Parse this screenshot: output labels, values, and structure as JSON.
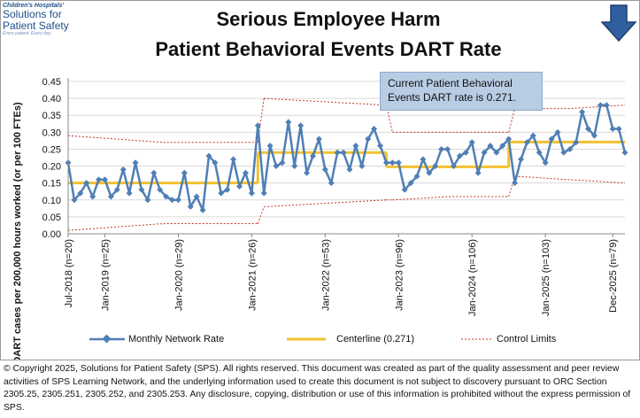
{
  "logo": {
    "line1": "Children's Hospitals'",
    "line2": "Solutions for",
    "line3": "Patient Safety",
    "line4": "Every patient. Every day."
  },
  "header": {
    "title_line1": "Serious Employee Harm",
    "title_line2": "Patient Behavioral Events DART Rate",
    "arrow_icon": "down-arrow-icon",
    "arrow_color": "#2f5f9e"
  },
  "callout": {
    "text": "Current  Patient Behavioral Events DART  rate  is 0.271."
  },
  "legend": {
    "series_label": "Monthly Network Rate",
    "centerline_label": "Centerline (0.271)",
    "limits_label": "Control Limits"
  },
  "footer": {
    "text": "© Copyright 2025, Solutions for Patient Safety (SPS).  All rights reserved.  This document was created as part of the quality assessment and peer review activities of SPS Learning Network, and the underlying information used to create this document is not subject to discovery pursuant to ORC Section 2305.25, 2305.251, 2305.252, and 2305.253. Any disclosure, copying, distribution or use of this information is prohibited without the express permission of SPS."
  },
  "colors": {
    "series": "#4f7fb5",
    "centerline": "#f2c12e",
    "limits": "#c0392b"
  },
  "chart_data": {
    "type": "line",
    "title": "Serious Employee Harm Patient Behavioral Events DART Rate",
    "ylabel": "DART cases  per 200,000 hours worked (or per 100 FTEs)",
    "xlabel": "",
    "ylim": [
      0,
      0.45
    ],
    "yticks": [
      0.0,
      0.05,
      0.1,
      0.15,
      0.2,
      0.25,
      0.3,
      0.35,
      0.4,
      0.45
    ],
    "ytick_labels": [
      "0.00",
      "0.05",
      "0.10",
      "0.15",
      "0.20",
      "0.25",
      "0.30",
      "0.35",
      "0.40",
      "0.45"
    ],
    "x_tick_labels": [
      {
        "index": 0,
        "label": "Jul-2018 (n=20)"
      },
      {
        "index": 6,
        "label": "Jan-2019 (n=25)"
      },
      {
        "index": 18,
        "label": "Jan-2020 (n=29)"
      },
      {
        "index": 30,
        "label": "Jan-2021 (n=26)"
      },
      {
        "index": 42,
        "label": "Jan-2022 (n=53)"
      },
      {
        "index": 54,
        "label": "Jan-2023 (n=96)"
      },
      {
        "index": 66,
        "label": "Jan-2024 (n=106)"
      },
      {
        "index": 78,
        "label": "Jan-2025 (n=103)"
      },
      {
        "index": 89,
        "label": "Dec-2025 (n=79)"
      }
    ],
    "series": [
      {
        "name": "Monthly Network Rate",
        "values": [
          0.21,
          0.1,
          0.12,
          0.15,
          0.11,
          0.16,
          0.16,
          0.11,
          0.13,
          0.19,
          0.12,
          0.21,
          0.13,
          0.1,
          0.18,
          0.13,
          0.11,
          0.1,
          0.1,
          0.18,
          0.08,
          0.11,
          0.07,
          0.23,
          0.21,
          0.12,
          0.13,
          0.22,
          0.14,
          0.18,
          0.12,
          0.32,
          0.12,
          0.26,
          0.2,
          0.21,
          0.33,
          0.2,
          0.32,
          0.18,
          0.23,
          0.28,
          0.19,
          0.15,
          0.24,
          0.24,
          0.19,
          0.26,
          0.2,
          0.28,
          0.31,
          0.26,
          0.21,
          0.21,
          0.21,
          0.13,
          0.15,
          0.17,
          0.22,
          0.18,
          0.2,
          0.25,
          0.25,
          0.2,
          0.23,
          0.24,
          0.27,
          0.18,
          0.24,
          0.26,
          0.24,
          0.26,
          0.28,
          0.15,
          0.22,
          0.27,
          0.29,
          0.24,
          0.21,
          0.28,
          0.3,
          0.24,
          0.25,
          0.27,
          0.36,
          0.31,
          0.29,
          0.38,
          0.38,
          0.31,
          0.31,
          0.24
        ]
      },
      {
        "name": "Centerline (0.271)",
        "segments": [
          {
            "start": 0,
            "end": 31,
            "value": 0.15
          },
          {
            "start": 32,
            "end": 52,
            "value": 0.24
          },
          {
            "start": 53,
            "end": 72,
            "value": 0.198
          },
          {
            "start": 73,
            "end": 91,
            "value": 0.271
          }
        ]
      },
      {
        "name": "Control Limits",
        "upper": [
          {
            "start": 0,
            "end": 31,
            "values": [
              0.29,
              0.27,
              0.27
            ]
          },
          {
            "start": 32,
            "end": 52,
            "values": [
              0.4,
              0.39,
              0.38
            ]
          },
          {
            "start": 53,
            "end": 72,
            "values": [
              0.3,
              0.3,
              0.3
            ]
          },
          {
            "start": 73,
            "end": 91,
            "values": [
              0.37,
              0.37,
              0.38
            ]
          }
        ],
        "lower": [
          {
            "start": 0,
            "end": 31,
            "values": [
              0.01,
              0.03,
              0.03
            ]
          },
          {
            "start": 32,
            "end": 52,
            "values": [
              0.08,
              0.09,
              0.1
            ]
          },
          {
            "start": 53,
            "end": 72,
            "values": [
              0.1,
              0.11,
              0.11
            ]
          },
          {
            "start": 73,
            "end": 91,
            "values": [
              0.17,
              0.16,
              0.15
            ]
          }
        ]
      }
    ]
  }
}
